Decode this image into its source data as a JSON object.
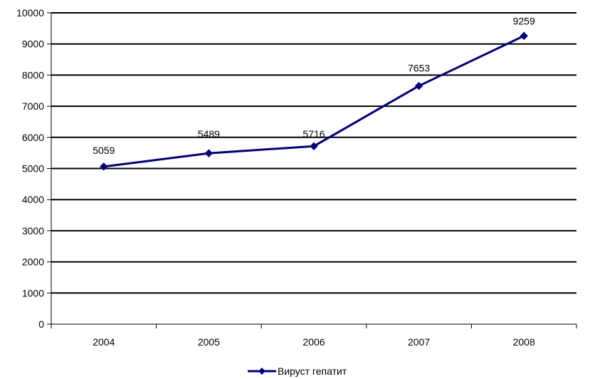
{
  "chart_data": {
    "type": "line",
    "title": "",
    "xlabel": "",
    "ylabel": "",
    "categories": [
      "2004",
      "2005",
      "2006",
      "2007",
      "2008"
    ],
    "series": [
      {
        "name": "Вируст гепатит",
        "values": [
          5059,
          5489,
          5716,
          7653,
          9259
        ],
        "color": "#000080"
      }
    ],
    "ylim": [
      0,
      10000
    ],
    "yticks": [
      0,
      1000,
      2000,
      3000,
      4000,
      5000,
      6000,
      7000,
      8000,
      9000,
      10000
    ],
    "grid": true,
    "legend_position": "bottom-center",
    "colors": {
      "gridline": "#000000",
      "axis": "#000000",
      "series": "#000080"
    }
  }
}
